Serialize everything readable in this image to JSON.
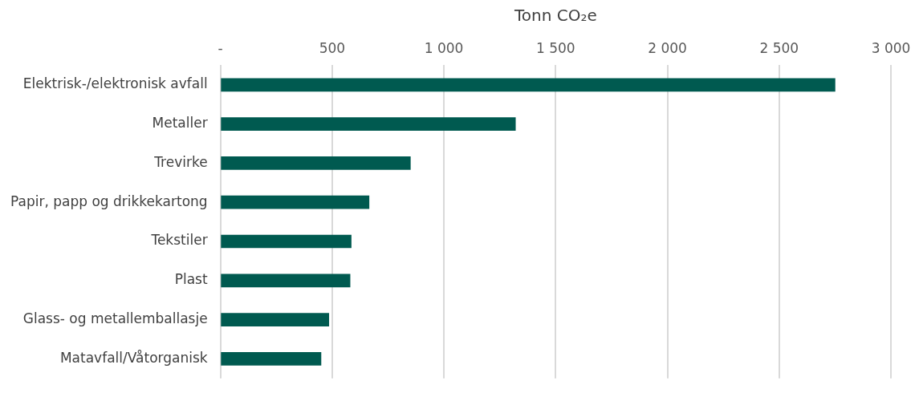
{
  "chart_data": {
    "type": "bar",
    "orientation": "horizontal",
    "xlabel": "Tonn CO₂e",
    "categories": [
      "Elektrisk-/elektronisk avfall",
      "Metaller",
      "Trevirke",
      "Papir, papp og drikkekartong",
      "Tekstiler",
      "Plast",
      "Glass- og metallemballasje",
      "Matavfall/Våtorganisk"
    ],
    "values": [
      2750,
      1320,
      850,
      665,
      585,
      580,
      485,
      450
    ],
    "color": "#005a50",
    "xlim": [
      0,
      3000
    ],
    "xticks": [
      {
        "value": 0,
        "label": "-"
      },
      500,
      {
        "value": 1000,
        "label": "1 000"
      },
      {
        "value": 1500,
        "label": "1 500"
      },
      {
        "value": 2000,
        "label": "2 000"
      },
      {
        "value": 2500,
        "label": "2 500"
      },
      {
        "value": 3000,
        "label": "3 000"
      }
    ],
    "grid": "x",
    "legend": false
  }
}
